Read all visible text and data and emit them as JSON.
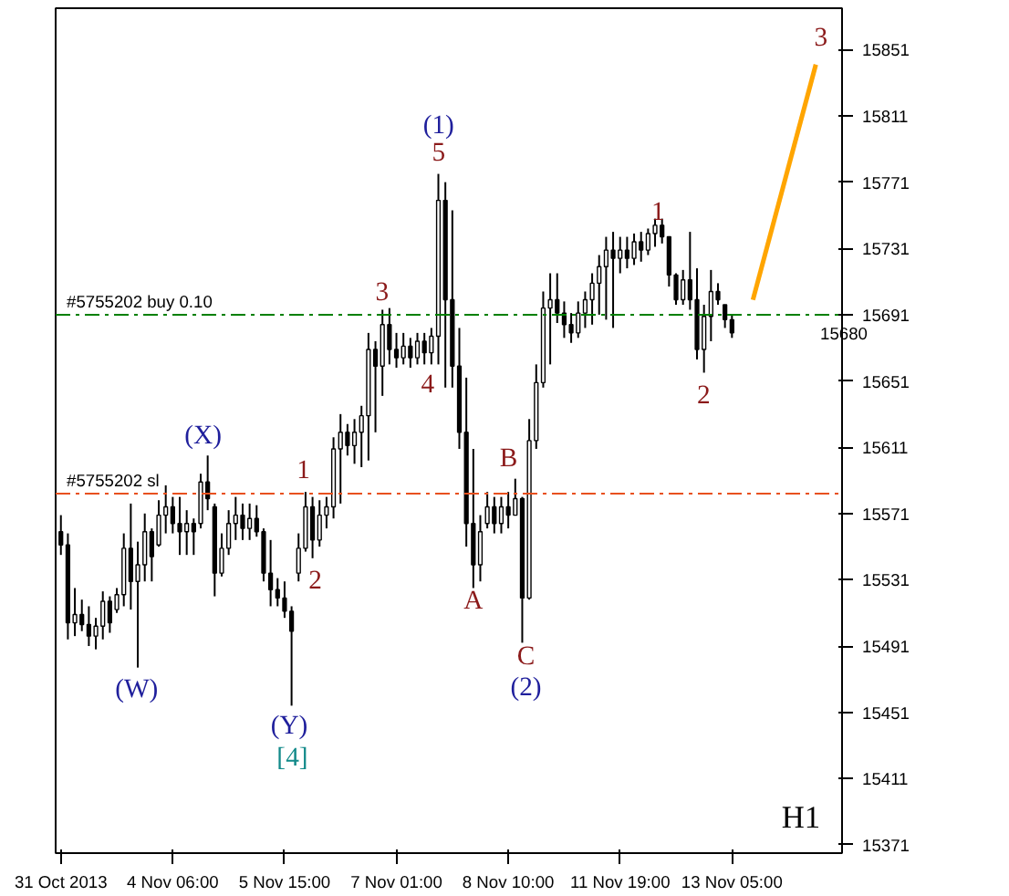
{
  "chart_data": {
    "type": "candlestick",
    "categories": [
      "31 Oct 2013",
      null,
      null,
      null,
      null,
      null,
      null,
      null,
      null,
      null,
      null,
      null,
      null,
      null,
      null,
      null,
      "4 Nov 06:00",
      null,
      null,
      null,
      null,
      null,
      null,
      null,
      null,
      null,
      null,
      null,
      null,
      null,
      null,
      null,
      "5 Nov 15:00",
      null,
      null,
      null,
      null,
      null,
      null,
      null,
      null,
      null,
      null,
      null,
      null,
      null,
      null,
      null,
      "7 Nov 01:00",
      null,
      null,
      null,
      null,
      null,
      null,
      null,
      null,
      null,
      null,
      null,
      null,
      null,
      null,
      null,
      "8 Nov 10:00",
      null,
      null,
      null,
      null,
      null,
      null,
      null,
      null,
      null,
      null,
      null,
      null,
      null,
      null,
      null,
      "11 Nov 19:00",
      null,
      null,
      null,
      null,
      null,
      null,
      null,
      null,
      null,
      null,
      null,
      null,
      null,
      null,
      null,
      "13 Nov 05:00",
      null,
      null,
      null,
      null,
      null,
      null,
      null,
      null,
      null,
      null,
      null,
      null,
      null,
      null,
      null
    ],
    "ylim": [
      15366,
      15876
    ],
    "yticks": [
      15371,
      15411,
      15451,
      15491,
      15531,
      15571,
      15611,
      15651,
      15691,
      15731,
      15771,
      15811,
      15851
    ],
    "grid": false,
    "series": [
      {
        "color": "#000000",
        "ohlc": [
          [
            15560,
            15570,
            15546,
            15552
          ],
          [
            15552,
            15559,
            15495,
            15505
          ],
          [
            15505,
            15526,
            15497,
            15510
          ],
          [
            15510,
            15519,
            15500,
            15504
          ],
          [
            15504,
            15515,
            15491,
            15497
          ],
          [
            15497,
            15508,
            15489,
            15503
          ],
          [
            15503,
            15524,
            15495,
            15518
          ],
          [
            15518,
            15521,
            15499,
            15505
          ],
          [
            15513,
            15526,
            15511,
            15522
          ],
          [
            15522,
            15559,
            15515,
            15550
          ],
          [
            15550,
            15577,
            15513,
            15530
          ],
          [
            15530,
            15554,
            15478,
            15540
          ],
          [
            15540,
            15571,
            15530,
            15560
          ],
          [
            15560,
            15562,
            15530,
            15545
          ],
          [
            15552,
            15579,
            15551,
            15570
          ],
          [
            15570,
            15588,
            15559,
            15575
          ],
          [
            15575,
            15581,
            15559,
            15565
          ],
          [
            15565,
            15581,
            15546,
            15560
          ],
          [
            15560,
            15573,
            15546,
            15565
          ],
          [
            15565,
            15568,
            15546,
            15560
          ],
          [
            15565,
            15595,
            15562,
            15590
          ],
          [
            15590,
            15606,
            15573,
            15580
          ],
          [
            15575,
            15577,
            15521,
            15535
          ],
          [
            15535,
            15559,
            15533,
            15550
          ],
          [
            15550,
            15573,
            15546,
            15565
          ],
          [
            15565,
            15581,
            15555,
            15570
          ],
          [
            15570,
            15577,
            15555,
            15562
          ],
          [
            15562,
            15577,
            15555,
            15568
          ],
          [
            15568,
            15576,
            15557,
            15560
          ],
          [
            15560,
            15562,
            15530,
            15535
          ],
          [
            15535,
            15555,
            15515,
            15525
          ],
          [
            15525,
            15532,
            15515,
            15520
          ],
          [
            15520,
            15530,
            15508,
            15512
          ],
          [
            15512,
            15515,
            15455,
            15500
          ],
          [
            15535,
            15559,
            15530,
            15550
          ],
          [
            15550,
            15584,
            15548,
            15575
          ],
          [
            15575,
            15581,
            15544,
            15555
          ],
          [
            15555,
            15579,
            15551,
            15570
          ],
          [
            15570,
            15581,
            15562,
            15575
          ],
          [
            15575,
            15617,
            15568,
            15610
          ],
          [
            15610,
            15631,
            15577,
            15620
          ],
          [
            15620,
            15625,
            15606,
            15612
          ],
          [
            15612,
            15628,
            15601,
            15620
          ],
          [
            15620,
            15636,
            15599,
            15630
          ],
          [
            15630,
            15680,
            15603,
            15670
          ],
          [
            15670,
            15675,
            15620,
            15660
          ],
          [
            15660,
            15694,
            15642,
            15685
          ],
          [
            15685,
            15695,
            15661,
            15670
          ],
          [
            15670,
            15680,
            15659,
            15665
          ],
          [
            15665,
            15680,
            15661,
            15672
          ],
          [
            15672,
            15677,
            15659,
            15665
          ],
          [
            15665,
            15680,
            15661,
            15675
          ],
          [
            15675,
            15680,
            15661,
            15668
          ],
          [
            15668,
            15683,
            15661,
            15678
          ],
          [
            15678,
            15776,
            15661,
            15760
          ],
          [
            15760,
            15771,
            15647,
            15700
          ],
          [
            15700,
            15754,
            15647,
            15660
          ],
          [
            15660,
            15683,
            15610,
            15620
          ],
          [
            15620,
            15653,
            15551,
            15565
          ],
          [
            15565,
            15610,
            15526,
            15540
          ],
          [
            15540,
            15570,
            15530,
            15560
          ],
          [
            15565,
            15584,
            15562,
            15575
          ],
          [
            15575,
            15581,
            15559,
            15565
          ],
          [
            15565,
            15581,
            15559,
            15575
          ],
          [
            15575,
            15584,
            15562,
            15570
          ],
          [
            15570,
            15592,
            15570,
            15580
          ],
          [
            15580,
            15581,
            15493,
            15520
          ],
          [
            15520,
            15628,
            15519,
            15615
          ],
          [
            15615,
            15661,
            15610,
            15650
          ],
          [
            15650,
            15705,
            15647,
            15695
          ],
          [
            15695,
            15716,
            15661,
            15700
          ],
          [
            15700,
            15716,
            15686,
            15692
          ],
          [
            15692,
            15699,
            15677,
            15685
          ],
          [
            15685,
            15692,
            15674,
            15680
          ],
          [
            15680,
            15699,
            15677,
            15692
          ],
          [
            15692,
            15705,
            15683,
            15700
          ],
          [
            15700,
            15716,
            15685,
            15710
          ],
          [
            15710,
            15727,
            15691,
            15720
          ],
          [
            15720,
            15738,
            15688,
            15730
          ],
          [
            15730,
            15741,
            15683,
            15725
          ],
          [
            15725,
            15738,
            15716,
            15730
          ],
          [
            15730,
            15738,
            15719,
            15725
          ],
          [
            15725,
            15740,
            15721,
            15735
          ],
          [
            15735,
            15741,
            15723,
            15730
          ],
          [
            15730,
            15743,
            15727,
            15740
          ],
          [
            15740,
            15749,
            15732,
            15745
          ],
          [
            15745,
            15749,
            15734,
            15738
          ],
          [
            15738,
            15738,
            15708,
            15715
          ],
          [
            15715,
            15716,
            15697,
            15700
          ],
          [
            15700,
            15718,
            15697,
            15712
          ],
          [
            15712,
            15741,
            15694,
            15700
          ],
          [
            15700,
            15719,
            15664,
            15670
          ],
          [
            15670,
            15697,
            15656,
            15690
          ],
          [
            15690,
            15718,
            15675,
            15705
          ],
          [
            15705,
            15710,
            15697,
            15700
          ],
          [
            15697,
            15697,
            15683,
            15688
          ],
          [
            15688,
            15691,
            15677,
            15680
          ],
          null,
          null,
          null,
          null,
          null,
          null,
          null,
          null,
          null,
          null,
          null,
          null,
          null,
          null,
          null
        ]
      },
      {
        "type": "line",
        "color": "#ffa500",
        "values": [
          null,
          null,
          null,
          null,
          null,
          null,
          null,
          null,
          null,
          null,
          null,
          null,
          null,
          null,
          null,
          null,
          null,
          null,
          null,
          null,
          null,
          null,
          null,
          null,
          null,
          null,
          null,
          null,
          null,
          null,
          null,
          null,
          null,
          null,
          null,
          null,
          null,
          null,
          null,
          null,
          null,
          null,
          null,
          null,
          null,
          null,
          null,
          null,
          null,
          null,
          null,
          null,
          null,
          null,
          null,
          null,
          null,
          null,
          null,
          null,
          null,
          null,
          null,
          null,
          null,
          null,
          null,
          null,
          null,
          null,
          null,
          null,
          null,
          null,
          null,
          null,
          null,
          null,
          null,
          null,
          null,
          null,
          null,
          null,
          null,
          null,
          null,
          null,
          null,
          null,
          null,
          null,
          null,
          null,
          null,
          null,
          null,
          null,
          null,
          15700,
          null,
          null,
          null,
          null,
          null,
          null,
          null,
          null,
          15842,
          null,
          null,
          null
        ]
      }
    ],
    "ref_lines": [
      {
        "axis": "y",
        "value": 15691,
        "label": "#5755202 buy 0.10",
        "color": "#008000",
        "line_style": "dashdot"
      },
      {
        "axis": "y",
        "value": 15583,
        "label": "#5755202 sl",
        "color": "#e8501e",
        "line_style": "dashdot"
      }
    ],
    "annotations": [
      "(W)",
      "(X)",
      "(Y)",
      "[4]",
      "1",
      "2",
      "3",
      "4",
      "5",
      "(1)",
      "A",
      "B",
      "C",
      "(2)",
      "1",
      "2",
      "3",
      "15680",
      "H1"
    ]
  }
}
